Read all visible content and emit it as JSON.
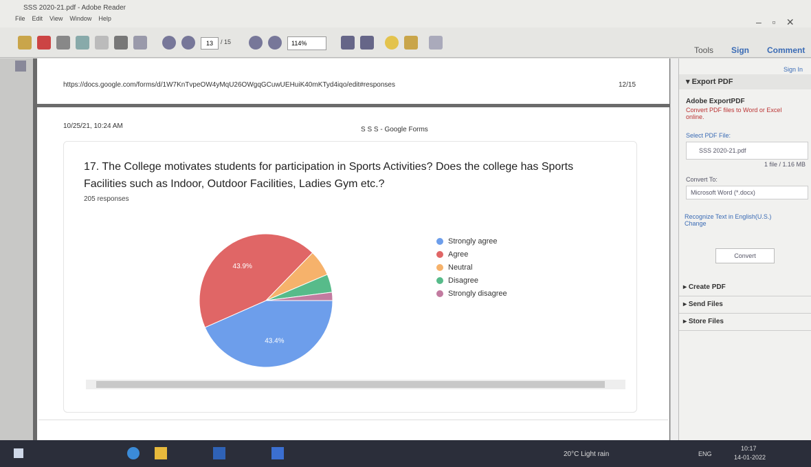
{
  "window": {
    "title": "SSS 2020-21.pdf - Adobe Reader",
    "menu": [
      "File",
      "Edit",
      "View",
      "Window",
      "Help"
    ]
  },
  "toolbar": {
    "page": "13",
    "page_total": "/ 15",
    "zoom": "114%",
    "tabs": [
      "Tools",
      "Sign",
      "Comment"
    ]
  },
  "document": {
    "url": "https://docs.google.com/forms/d/1W7KnTvpeOW4yMqU26OWgqGCuwUEHuiK40mKTyd4iqo/edit#responses",
    "page_no": "12/15",
    "timestamp": "10/25/21, 10:24 AM",
    "header": "S S S - Google Forms",
    "question": "17. The College motivates students for participation in Sports Activities? Does the college has Sports Facilities such as Indoor, Outdoor Facilities, Ladies Gym etc.?",
    "responses": "205 responses"
  },
  "chart_data": {
    "type": "pie",
    "categories": [
      "Strongly agree",
      "Agree",
      "Neutral",
      "Disagree",
      "Strongly disagree"
    ],
    "values": [
      43.4,
      43.9,
      6.3,
      4.4,
      2.0
    ],
    "value_labels": [
      "43.4%",
      "43.9%",
      null,
      null,
      null
    ],
    "colors": [
      "#6d9eeb",
      "#e06666",
      "#f6b26b",
      "#57bb8a",
      "#c27ba0"
    ],
    "legend": "right"
  },
  "side_panel": {
    "sign_in": "Sign In",
    "export": "Export PDF",
    "service": "Adobe ExportPDF",
    "service_desc": "Convert PDF files to Word or Excel online.",
    "select": "Select PDF File:",
    "file": "SSS 2020-21.pdf",
    "file_info": "1 file / 1.16 MB",
    "convert_to": "Convert To:",
    "format": "Microsoft Word (*.docx)",
    "recognize": "Recognize Text in English(U.S.)",
    "change": "Change",
    "convert": "Convert",
    "sections": [
      "Create PDF",
      "Send Files",
      "Store Files"
    ]
  },
  "taskbar": {
    "weather": "20°C Light rain",
    "lang": "ENG",
    "time": "10:17",
    "date": "14-01-2022"
  }
}
